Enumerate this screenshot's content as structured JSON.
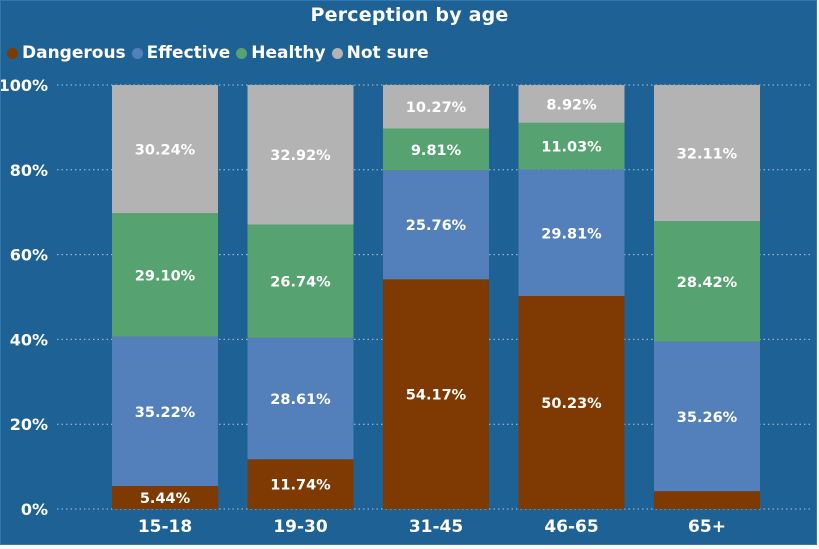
{
  "chart_data": {
    "type": "bar",
    "stacked": true,
    "title": "Perception by age",
    "categories": [
      "15-18",
      "19-30",
      "31-45",
      "46-65",
      "65+"
    ],
    "series": [
      {
        "name": "Dangerous",
        "color": "#7f3a04",
        "values": [
          5.44,
          11.74,
          54.17,
          50.23,
          4.21
        ],
        "labels": [
          "5.44%",
          "11.74%",
          "54.17%",
          "50.23%",
          ""
        ]
      },
      {
        "name": "Effective",
        "color": "#5380bb",
        "values": [
          35.22,
          28.61,
          25.76,
          29.81,
          35.26
        ],
        "labels": [
          "35.22%",
          "28.61%",
          "25.76%",
          "29.81%",
          "35.26%"
        ]
      },
      {
        "name": "Healthy",
        "color": "#56a371",
        "values": [
          29.1,
          26.74,
          9.81,
          11.03,
          28.42
        ],
        "labels": [
          "29.10%",
          "26.74%",
          "9.81%",
          "11.03%",
          "28.42%"
        ]
      },
      {
        "name": "Not sure",
        "color": "#b3b3b3",
        "values": [
          30.24,
          32.92,
          10.27,
          8.92,
          32.11
        ],
        "labels": [
          "30.24%",
          "32.92%",
          "10.27%",
          "8.92%",
          "32.11%"
        ]
      }
    ],
    "yticks": [
      "0%",
      "20%",
      "40%",
      "60%",
      "80%",
      "100%"
    ],
    "ylim": [
      0,
      100
    ],
    "legend_position": "top-left",
    "grid": true,
    "background_color": "#1d6195"
  }
}
